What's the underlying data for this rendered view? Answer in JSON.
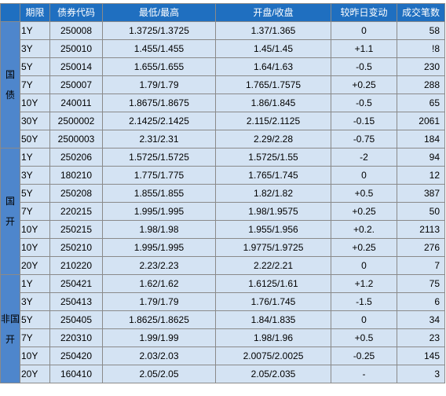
{
  "header": {
    "col0": "",
    "col1": "期限",
    "col2": "债券代码",
    "col3": "最低/最高",
    "col4": "开盘/收盘",
    "col5": "较昨日变动",
    "col6": "成交笔数"
  },
  "groups": [
    {
      "name": "国债",
      "chars": [
        "国",
        "债"
      ],
      "rows": [
        {
          "term": "1Y",
          "code": "250008",
          "lowhigh": "1.3725/1.3725",
          "openclose": "1.37/1.365",
          "change": "0",
          "trades": "58"
        },
        {
          "term": "3Y",
          "code": "250010",
          "lowhigh": "1.455/1.455",
          "openclose": "1.45/1.45",
          "change": "+1.1",
          "trades": "!8"
        },
        {
          "term": "5Y",
          "code": "250014",
          "lowhigh": "1.655/1.655",
          "openclose": "1.64/1.63",
          "change": "-0.5",
          "trades": "230"
        },
        {
          "term": "7Y",
          "code": "250007",
          "lowhigh": "1.79/1.79",
          "openclose": "1.765/1.7575",
          "change": "+0.25",
          "trades": "288"
        },
        {
          "term": "10Y",
          "code": "240011",
          "lowhigh": "1.8675/1.8675",
          "openclose": "1.86/1.845",
          "change": "-0.5",
          "trades": "65"
        },
        {
          "term": "30Y",
          "code": "2500002",
          "lowhigh": "2.1425/2.1425",
          "openclose": "2.115/2.1125",
          "change": "-0.15",
          "trades": "2061"
        },
        {
          "term": "50Y",
          "code": "2500003",
          "lowhigh": "2.31/2.31",
          "openclose": "2.29/2.28",
          "change": "-0.75",
          "trades": "184"
        }
      ]
    },
    {
      "name": "国开",
      "chars": [
        "国",
        "开"
      ],
      "rows": [
        {
          "term": "1Y",
          "code": "250206",
          "lowhigh": "1.5725/1.5725",
          "openclose": "1.5725/1.55",
          "change": "-2",
          "trades": "94"
        },
        {
          "term": "3Y",
          "code": "180210",
          "lowhigh": "1.775/1.775",
          "openclose": "1.765/1.745",
          "change": "0",
          "trades": "12"
        },
        {
          "term": "5Y",
          "code": "250208",
          "lowhigh": "1.855/1.855",
          "openclose": "1.82/1.82",
          "change": "+0.5",
          "trades": "387"
        },
        {
          "term": "7Y",
          "code": "220215",
          "lowhigh": "1.995/1.995",
          "openclose": "1.98/1.9575",
          "change": "+0.25",
          "trades": "50"
        },
        {
          "term": "10Y",
          "code": "250215",
          "lowhigh": "1.98/1.98",
          "openclose": "1.955/1.956",
          "change": "+0.2.",
          "trades": "2113"
        },
        {
          "term": "10Y",
          "code": "250210",
          "lowhigh": "1.995/1.995",
          "openclose": "1.9775/1.9725",
          "change": "+0.25",
          "trades": "276"
        },
        {
          "term": "20Y",
          "code": "210220",
          "lowhigh": "2.23/2.23",
          "openclose": "2.22/2.21",
          "change": "0",
          "trades": "7"
        }
      ]
    },
    {
      "name": "非国开",
      "chars": [
        "非国",
        "开"
      ],
      "rows": [
        {
          "term": "1Y",
          "code": "250421",
          "lowhigh": "1.62/1.62",
          "openclose": "1.6125/1.61",
          "change": "+1.2",
          "trades": "75"
        },
        {
          "term": "3Y",
          "code": "250413",
          "lowhigh": "1.79/1.79",
          "openclose": "1.76/1.745",
          "change": "-1.5",
          "trades": "6"
        },
        {
          "term": "5Y",
          "code": "250405",
          "lowhigh": "1.8625/1.8625",
          "openclose": "1.84/1.835",
          "change": "0",
          "trades": "34"
        },
        {
          "term": "7Y",
          "code": "220310",
          "lowhigh": "1.99/1.99",
          "openclose": "1.98/1.96",
          "change": "+0.5",
          "trades": "23"
        },
        {
          "term": "10Y",
          "code": "250420",
          "lowhigh": "2.03/2.03",
          "openclose": "2.0075/2.0025",
          "change": "-0.25",
          "trades": "145"
        },
        {
          "term": "20Y",
          "code": "160410",
          "lowhigh": "2.05/2.05",
          "openclose": "2.05/2.035",
          "change": "-",
          "trades": "3"
        }
      ]
    }
  ],
  "colors": {
    "header_bg": "#1f6fc0",
    "header_text": "#ffffff",
    "cell_bg": "#d4e3f3",
    "group_bg": "#4e86cc",
    "border": "#8a8a8a"
  }
}
